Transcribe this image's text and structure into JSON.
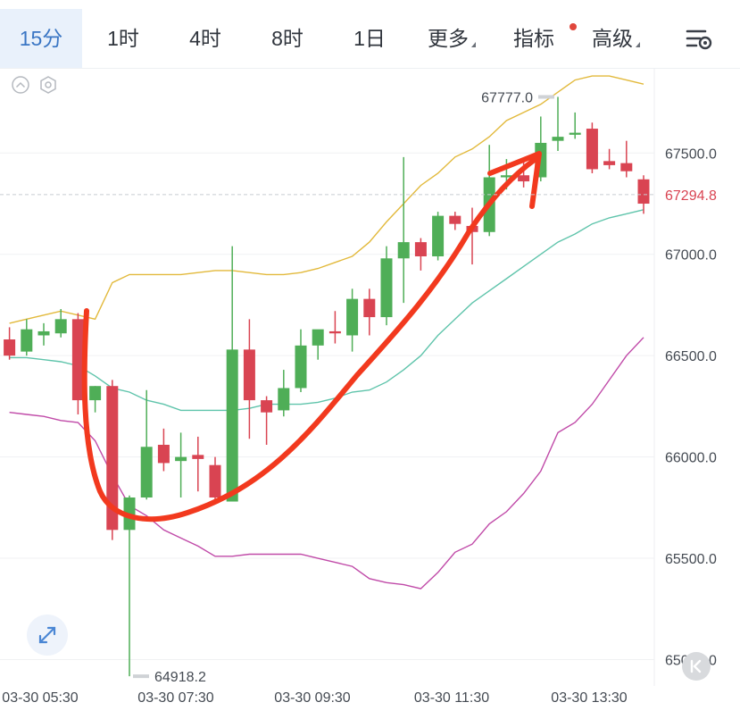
{
  "tabs": [
    {
      "label": "15分",
      "active": true,
      "caret": false,
      "dot": false
    },
    {
      "label": "1时",
      "active": false,
      "caret": false,
      "dot": false
    },
    {
      "label": "4时",
      "active": false,
      "caret": false,
      "dot": false
    },
    {
      "label": "8时",
      "active": false,
      "caret": false,
      "dot": false
    },
    {
      "label": "1日",
      "active": false,
      "caret": false,
      "dot": false
    },
    {
      "label": "更多",
      "active": false,
      "caret": true,
      "dot": false
    },
    {
      "label": "指标",
      "active": false,
      "caret": false,
      "dot": true
    },
    {
      "label": "高级",
      "active": false,
      "caret": true,
      "dot": false
    }
  ],
  "icons": {
    "settings": "chart-settings-icon",
    "collapse": "chevron-up-circle-icon",
    "indicator_settings": "hexagon-gear-icon",
    "fullscreen": "expand-arrows-icon",
    "jump_latest": "skip-to-latest-icon"
  },
  "chart_data": {
    "type": "candlestick",
    "y_ticks": [
      65000,
      65500,
      66000,
      66500,
      67000,
      67500
    ],
    "y_tick_labels": [
      "65000.0",
      "65500.0",
      "66000.0",
      "66500.0",
      "67000.0",
      "67500.0"
    ],
    "ylim": [
      64870,
      67920
    ],
    "x_tick_labels": [
      "03-30 05:30",
      "03-30 07:30",
      "03-30 09:30",
      "03-30 11:30",
      "03-30 13:30"
    ],
    "high_label": "67777.0",
    "low_label": "64918.2",
    "current_price": 67294.8,
    "current_price_label": "67294.8",
    "colors": {
      "up": "#4fae57",
      "down": "#d94452",
      "upper_band": "#e2b93b",
      "middle_band": "#5fc4ab",
      "lower_band": "#c04aa8",
      "annotation": "#f2391e",
      "current_price": "#d94452"
    },
    "candles": [
      {
        "o": 66580,
        "h": 66640,
        "l": 66480,
        "c": 66500
      },
      {
        "o": 66520,
        "h": 66680,
        "l": 66500,
        "c": 66630
      },
      {
        "o": 66600,
        "h": 66660,
        "l": 66550,
        "c": 66620
      },
      {
        "o": 66610,
        "h": 66730,
        "l": 66590,
        "c": 66680
      },
      {
        "o": 66680,
        "h": 66710,
        "l": 66210,
        "c": 66280
      },
      {
        "o": 66280,
        "h": 66350,
        "l": 66220,
        "c": 66350
      },
      {
        "o": 66350,
        "h": 66380,
        "l": 65590,
        "c": 65640
      },
      {
        "o": 65640,
        "h": 65810,
        "l": 64918.2,
        "c": 65800
      },
      {
        "o": 65800,
        "h": 66330,
        "l": 65790,
        "c": 66050
      },
      {
        "o": 66060,
        "h": 66140,
        "l": 65930,
        "c": 65970
      },
      {
        "o": 65980,
        "h": 66120,
        "l": 65800,
        "c": 66000
      },
      {
        "o": 66010,
        "h": 66100,
        "l": 65830,
        "c": 65990
      },
      {
        "o": 65960,
        "h": 66000,
        "l": 65780,
        "c": 65800
      },
      {
        "o": 65780,
        "h": 67040,
        "l": 65780,
        "c": 66530
      },
      {
        "o": 66530,
        "h": 66680,
        "l": 66090,
        "c": 66280
      },
      {
        "o": 66280,
        "h": 66300,
        "l": 66060,
        "c": 66220
      },
      {
        "o": 66230,
        "h": 66430,
        "l": 66200,
        "c": 66340
      },
      {
        "o": 66340,
        "h": 66630,
        "l": 66320,
        "c": 66550
      },
      {
        "o": 66550,
        "h": 66610,
        "l": 66480,
        "c": 66630
      },
      {
        "o": 66620,
        "h": 66720,
        "l": 66560,
        "c": 66610
      },
      {
        "o": 66600,
        "h": 66830,
        "l": 66520,
        "c": 66780
      },
      {
        "o": 66780,
        "h": 66830,
        "l": 66600,
        "c": 66690
      },
      {
        "o": 66690,
        "h": 67040,
        "l": 66650,
        "c": 66980
      },
      {
        "o": 66980,
        "h": 67480,
        "l": 66760,
        "c": 67060
      },
      {
        "o": 67060,
        "h": 67080,
        "l": 66920,
        "c": 66990
      },
      {
        "o": 66990,
        "h": 67210,
        "l": 66970,
        "c": 67190
      },
      {
        "o": 67190,
        "h": 67210,
        "l": 67120,
        "c": 67150
      },
      {
        "o": 67140,
        "h": 67230,
        "l": 66950,
        "c": 67110
      },
      {
        "o": 67110,
        "h": 67540,
        "l": 67090,
        "c": 67380
      },
      {
        "o": 67380,
        "h": 67470,
        "l": 67320,
        "c": 67390
      },
      {
        "o": 67390,
        "h": 67470,
        "l": 67330,
        "c": 67360
      },
      {
        "o": 67380,
        "h": 67680,
        "l": 67360,
        "c": 67550
      },
      {
        "o": 67560,
        "h": 67777.0,
        "l": 67510,
        "c": 67580
      },
      {
        "o": 67590,
        "h": 67700,
        "l": 67570,
        "c": 67600
      },
      {
        "o": 67620,
        "h": 67650,
        "l": 67400,
        "c": 67420
      },
      {
        "o": 67460,
        "h": 67520,
        "l": 67420,
        "c": 67440
      },
      {
        "o": 67450,
        "h": 67560,
        "l": 67380,
        "c": 67410
      },
      {
        "o": 67370,
        "h": 67390,
        "l": 67200,
        "c": 67250
      }
    ],
    "bollinger": {
      "upper": [
        66660,
        66680,
        66700,
        66720,
        66700,
        66680,
        66860,
        66900,
        66900,
        66900,
        66900,
        66910,
        66920,
        66920,
        66910,
        66900,
        66900,
        66910,
        66930,
        66960,
        66990,
        67060,
        67160,
        67250,
        67340,
        67400,
        67480,
        67520,
        67580,
        67660,
        67700,
        67740,
        67800,
        67860,
        67880,
        67880,
        67860,
        67840
      ],
      "middle": [
        66490,
        66490,
        66480,
        66470,
        66450,
        66400,
        66340,
        66320,
        66280,
        66260,
        66230,
        66230,
        66230,
        66230,
        66240,
        66260,
        66260,
        66260,
        66270,
        66290,
        66320,
        66330,
        66370,
        66430,
        66500,
        66600,
        66680,
        66760,
        66820,
        66880,
        66940,
        67000,
        67060,
        67100,
        67150,
        67180,
        67200,
        67220
      ],
      "lower": [
        66220,
        66210,
        66200,
        66180,
        66170,
        66080,
        65910,
        65760,
        65710,
        65640,
        65600,
        65560,
        65510,
        65510,
        65520,
        65520,
        65520,
        65520,
        65500,
        65480,
        65460,
        65400,
        65380,
        65370,
        65350,
        65430,
        65530,
        65570,
        65670,
        65730,
        65820,
        65930,
        66120,
        66170,
        66260,
        66380,
        66500,
        66590
      ]
    }
  }
}
